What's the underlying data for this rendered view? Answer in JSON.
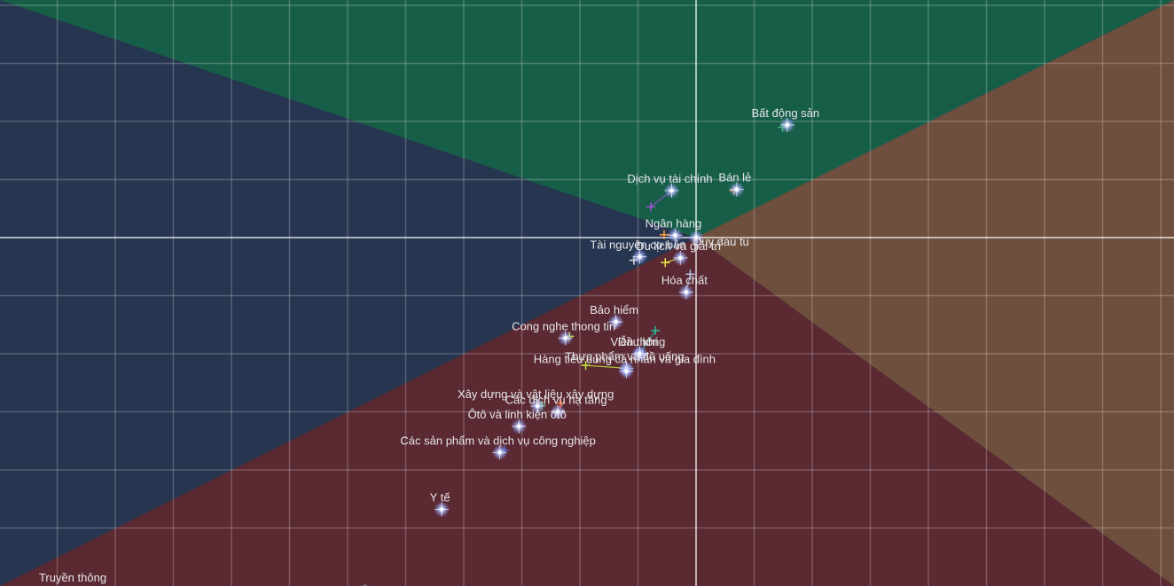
{
  "chart_data": {
    "type": "scatter",
    "title": "",
    "xlabel": "",
    "ylabel": "",
    "xlim": [
      -6,
      4.1
    ],
    "ylim": [
      -6,
      4.1
    ],
    "grid": true,
    "quadrant_colors": {
      "top": "#175e48",
      "right": "#6e4e3c",
      "bottom": "#5a2932",
      "left": "#263550"
    },
    "points": [
      {
        "name": "Bất động sản",
        "x": 1.57,
        "y": 1.94,
        "mx": 1.49,
        "my": 1.9,
        "marker_color": "#3ec47a"
      },
      {
        "name": "Bán lẻ",
        "x": 0.7,
        "y": 0.83,
        "mx": 0.65,
        "my": 0.81,
        "marker_color": "#ff9d3b"
      },
      {
        "name": "Dịch vụ tài chính",
        "x": -0.42,
        "y": 0.81,
        "mx": -0.78,
        "my": 0.53,
        "marker_color": "#a152d6"
      },
      {
        "name": "Ngân hàng",
        "x": -0.36,
        "y": 0.04,
        "mx": -0.55,
        "my": 0.05,
        "marker_color": "#ff9d3b"
      },
      {
        "name": "Quy dau tu",
        "x": 0,
        "y": 0,
        "mx": 0,
        "my": 0,
        "marker_color": "#bfbfbf"
      },
      {
        "name": "Tài nguyên cơ bản",
        "x": -0.97,
        "y": -0.33,
        "mx": -1.07,
        "my": -0.39,
        "marker_color": "#e6e6e6"
      },
      {
        "name": "Du lịch và giải trí",
        "x": -0.27,
        "y": -0.35,
        "mx": -0.53,
        "my": -0.43,
        "marker_color": "#f2e64a"
      },
      {
        "name": "Hóa chất",
        "x": -0.17,
        "y": -0.94,
        "mx": -0.1,
        "my": -0.63,
        "marker_color": "#b5c2e6"
      },
      {
        "name": "Bảo hiểm",
        "x": -1.38,
        "y": -1.45,
        "mx": -1.38,
        "my": -1.45,
        "marker_color": "#e6e6e6"
      },
      {
        "name": "Cong nghe thong tin",
        "x": -2.25,
        "y": -1.73,
        "mx": -2.18,
        "my": -1.7,
        "marker_color": "#c2e640"
      },
      {
        "name": "Viễn thông",
        "x": -0.97,
        "y": -2.0,
        "mx": -0.7,
        "my": -1.6,
        "marker_color": "#2fb89b"
      },
      {
        "name": "Dầu khí",
        "x": -0.97,
        "y": -2.0,
        "mx": -0.97,
        "my": -2.0,
        "marker_color": "#e6e6e6"
      },
      {
        "name": "Thực phẩm và đồ uống",
        "x": -1.2,
        "y": -2.25,
        "mx": -1.9,
        "my": -2.2,
        "marker_color": "#c2e640"
      },
      {
        "name": "Hàng tiêu dùng cá nhân và gia đình",
        "x": -1.2,
        "y": -2.3,
        "mx": -1.2,
        "my": -2.3,
        "marker_color": "#e6e6e6"
      },
      {
        "name": "Các dịch vụ hạ tầng",
        "x": -2.38,
        "y": -3.0,
        "mx": -2.33,
        "my": -2.85,
        "marker_color": "#ff5a2b"
      },
      {
        "name": "Xây dựng và vật liệu xây dựng",
        "x": -2.73,
        "y": -2.9,
        "mx": -2.66,
        "my": -2.89,
        "marker_color": "#45b245"
      },
      {
        "name": "Ôtô và linh kiện ôtô",
        "x": -3.05,
        "y": -3.25,
        "mx": -3.05,
        "my": -3.25,
        "marker_color": "#e6e6e6"
      },
      {
        "name": "Các sản phẩm và dịch vụ công nghiệp",
        "x": -3.38,
        "y": -3.7,
        "mx": -3.3,
        "my": -3.66,
        "marker_color": "#4a68d8"
      },
      {
        "name": "Y tế",
        "x": -4.38,
        "y": -4.68,
        "mx": -4.38,
        "my": -4.68,
        "marker_color": "#e6e6e6"
      },
      {
        "name": "Truyền thông",
        "x": -5.7,
        "y": -6.1,
        "mx": -5.7,
        "my": -6.1,
        "marker_color": "#e6e6e6"
      }
    ]
  }
}
